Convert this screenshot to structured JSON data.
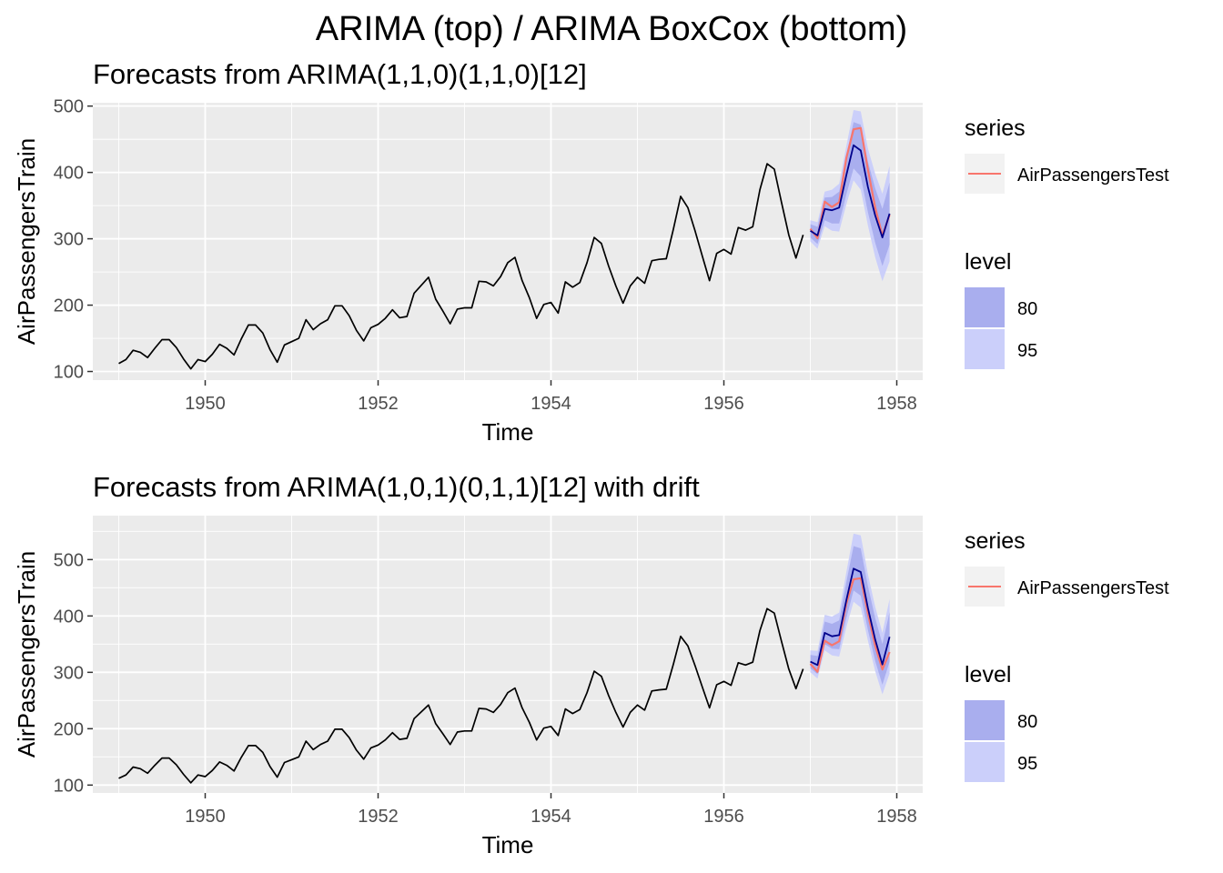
{
  "figure": {
    "title": "ARIMA (top) / ARIMA BoxCox (bottom)"
  },
  "colors": {
    "panel_bg": "#ebebeb",
    "grid": "#ffffff",
    "history_line": "#000000",
    "forecast_mean": "#00008b",
    "test_line": "#f8766d",
    "band80": "#a9aeee",
    "band95": "#cbcffa",
    "axis_text": "#4d4d4d"
  },
  "chart_data": [
    {
      "type": "line",
      "title": "Forecasts from ARIMA(1,1,0)(1,1,0)[12]",
      "xlabel": "Time",
      "ylabel": "AirPassengersTrain",
      "xlim": [
        1948.7,
        1958.3
      ],
      "ylim": [
        87,
        505
      ],
      "xticks": [
        1950,
        1952,
        1954,
        1956,
        1958
      ],
      "yticks": [
        100,
        200,
        300,
        400,
        500
      ],
      "grid": true,
      "legend_position": "right",
      "train": {
        "start": 1949,
        "frequency": 12,
        "values": [
          112,
          118,
          132,
          129,
          121,
          135,
          148,
          148,
          136,
          119,
          104,
          118,
          115,
          126,
          141,
          135,
          125,
          149,
          170,
          170,
          158,
          133,
          114,
          140,
          145,
          150,
          178,
          163,
          172,
          178,
          199,
          199,
          184,
          162,
          146,
          166,
          171,
          180,
          193,
          181,
          183,
          218,
          230,
          242,
          209,
          191,
          172,
          194,
          196,
          196,
          236,
          235,
          229,
          243,
          264,
          272,
          237,
          211,
          180,
          201,
          204,
          188,
          235,
          227,
          234,
          264,
          302,
          293,
          259,
          229,
          203,
          229,
          242,
          233,
          267,
          269,
          270,
          315,
          364,
          347,
          312,
          274,
          237,
          278,
          284,
          277,
          317,
          313,
          318,
          374,
          413,
          405,
          355,
          306,
          271,
          306
        ]
      },
      "test": {
        "name": "AirPassengersTest",
        "start": 1957,
        "frequency": 12,
        "values": [
          315,
          301,
          356,
          348,
          355,
          422,
          465,
          467,
          404,
          347,
          305,
          336
        ]
      },
      "forecast": {
        "start": 1957,
        "frequency": 12,
        "mean": [
          312,
          305,
          345,
          343,
          347,
          396,
          441,
          433,
          378,
          335,
          302,
          338
        ],
        "lo80": [
          302,
          292,
          328,
          323,
          323,
          367,
          406,
          394,
          340,
          294,
          259,
          291
        ],
        "hi80": [
          322,
          318,
          362,
          363,
          371,
          425,
          476,
          472,
          416,
          376,
          345,
          385
        ],
        "lo95": [
          296,
          285,
          319,
          312,
          311,
          352,
          388,
          374,
          320,
          272,
          236,
          266
        ],
        "hi95": [
          328,
          325,
          371,
          374,
          383,
          440,
          494,
          492,
          436,
          398,
          368,
          410
        ]
      },
      "legend": {
        "series_title": "series",
        "series_items": [
          "AirPassengersTest"
        ],
        "level_title": "level",
        "level_items": [
          "80",
          "95"
        ]
      }
    },
    {
      "type": "line",
      "title": "Forecasts from ARIMA(1,0,1)(0,1,1)[12] with drift",
      "xlabel": "Time",
      "ylabel": "AirPassengersTrain",
      "xlim": [
        1948.7,
        1958.3
      ],
      "ylim": [
        86,
        578
      ],
      "xticks": [
        1950,
        1952,
        1954,
        1956,
        1958
      ],
      "yticks": [
        100,
        200,
        300,
        400,
        500
      ],
      "grid": true,
      "legend_position": "right",
      "train": {
        "start": 1949,
        "frequency": 12,
        "values": [
          112,
          118,
          132,
          129,
          121,
          135,
          148,
          148,
          136,
          119,
          104,
          118,
          115,
          126,
          141,
          135,
          125,
          149,
          170,
          170,
          158,
          133,
          114,
          140,
          145,
          150,
          178,
          163,
          172,
          178,
          199,
          199,
          184,
          162,
          146,
          166,
          171,
          180,
          193,
          181,
          183,
          218,
          230,
          242,
          209,
          191,
          172,
          194,
          196,
          196,
          236,
          235,
          229,
          243,
          264,
          272,
          237,
          211,
          180,
          201,
          204,
          188,
          235,
          227,
          234,
          264,
          302,
          293,
          259,
          229,
          203,
          229,
          242,
          233,
          267,
          269,
          270,
          315,
          364,
          347,
          312,
          274,
          237,
          278,
          284,
          277,
          317,
          313,
          318,
          374,
          413,
          405,
          355,
          306,
          271,
          306
        ]
      },
      "test": {
        "name": "AirPassengersTest",
        "start": 1957,
        "frequency": 12,
        "values": [
          315,
          301,
          356,
          348,
          355,
          422,
          465,
          467,
          404,
          347,
          305,
          336
        ]
      },
      "forecast": {
        "start": 1957,
        "frequency": 12,
        "mean": [
          319,
          313,
          370,
          364,
          366,
          428,
          484,
          478,
          414,
          358,
          314,
          363
        ],
        "lo80": [
          307,
          297,
          350,
          342,
          341,
          396,
          445,
          436,
          375,
          320,
          278,
          319
        ],
        "hi80": [
          331,
          329,
          390,
          386,
          392,
          460,
          524,
          520,
          453,
          396,
          350,
          407
        ],
        "lo95": [
          300,
          289,
          339,
          330,
          328,
          380,
          425,
          415,
          356,
          302,
          261,
          298
        ],
        "hi95": [
          339,
          338,
          402,
          399,
          406,
          478,
          546,
          543,
          474,
          416,
          370,
          430
        ]
      },
      "legend": {
        "series_title": "series",
        "series_items": [
          "AirPassengersTest"
        ],
        "level_title": "level",
        "level_items": [
          "80",
          "95"
        ]
      }
    }
  ]
}
